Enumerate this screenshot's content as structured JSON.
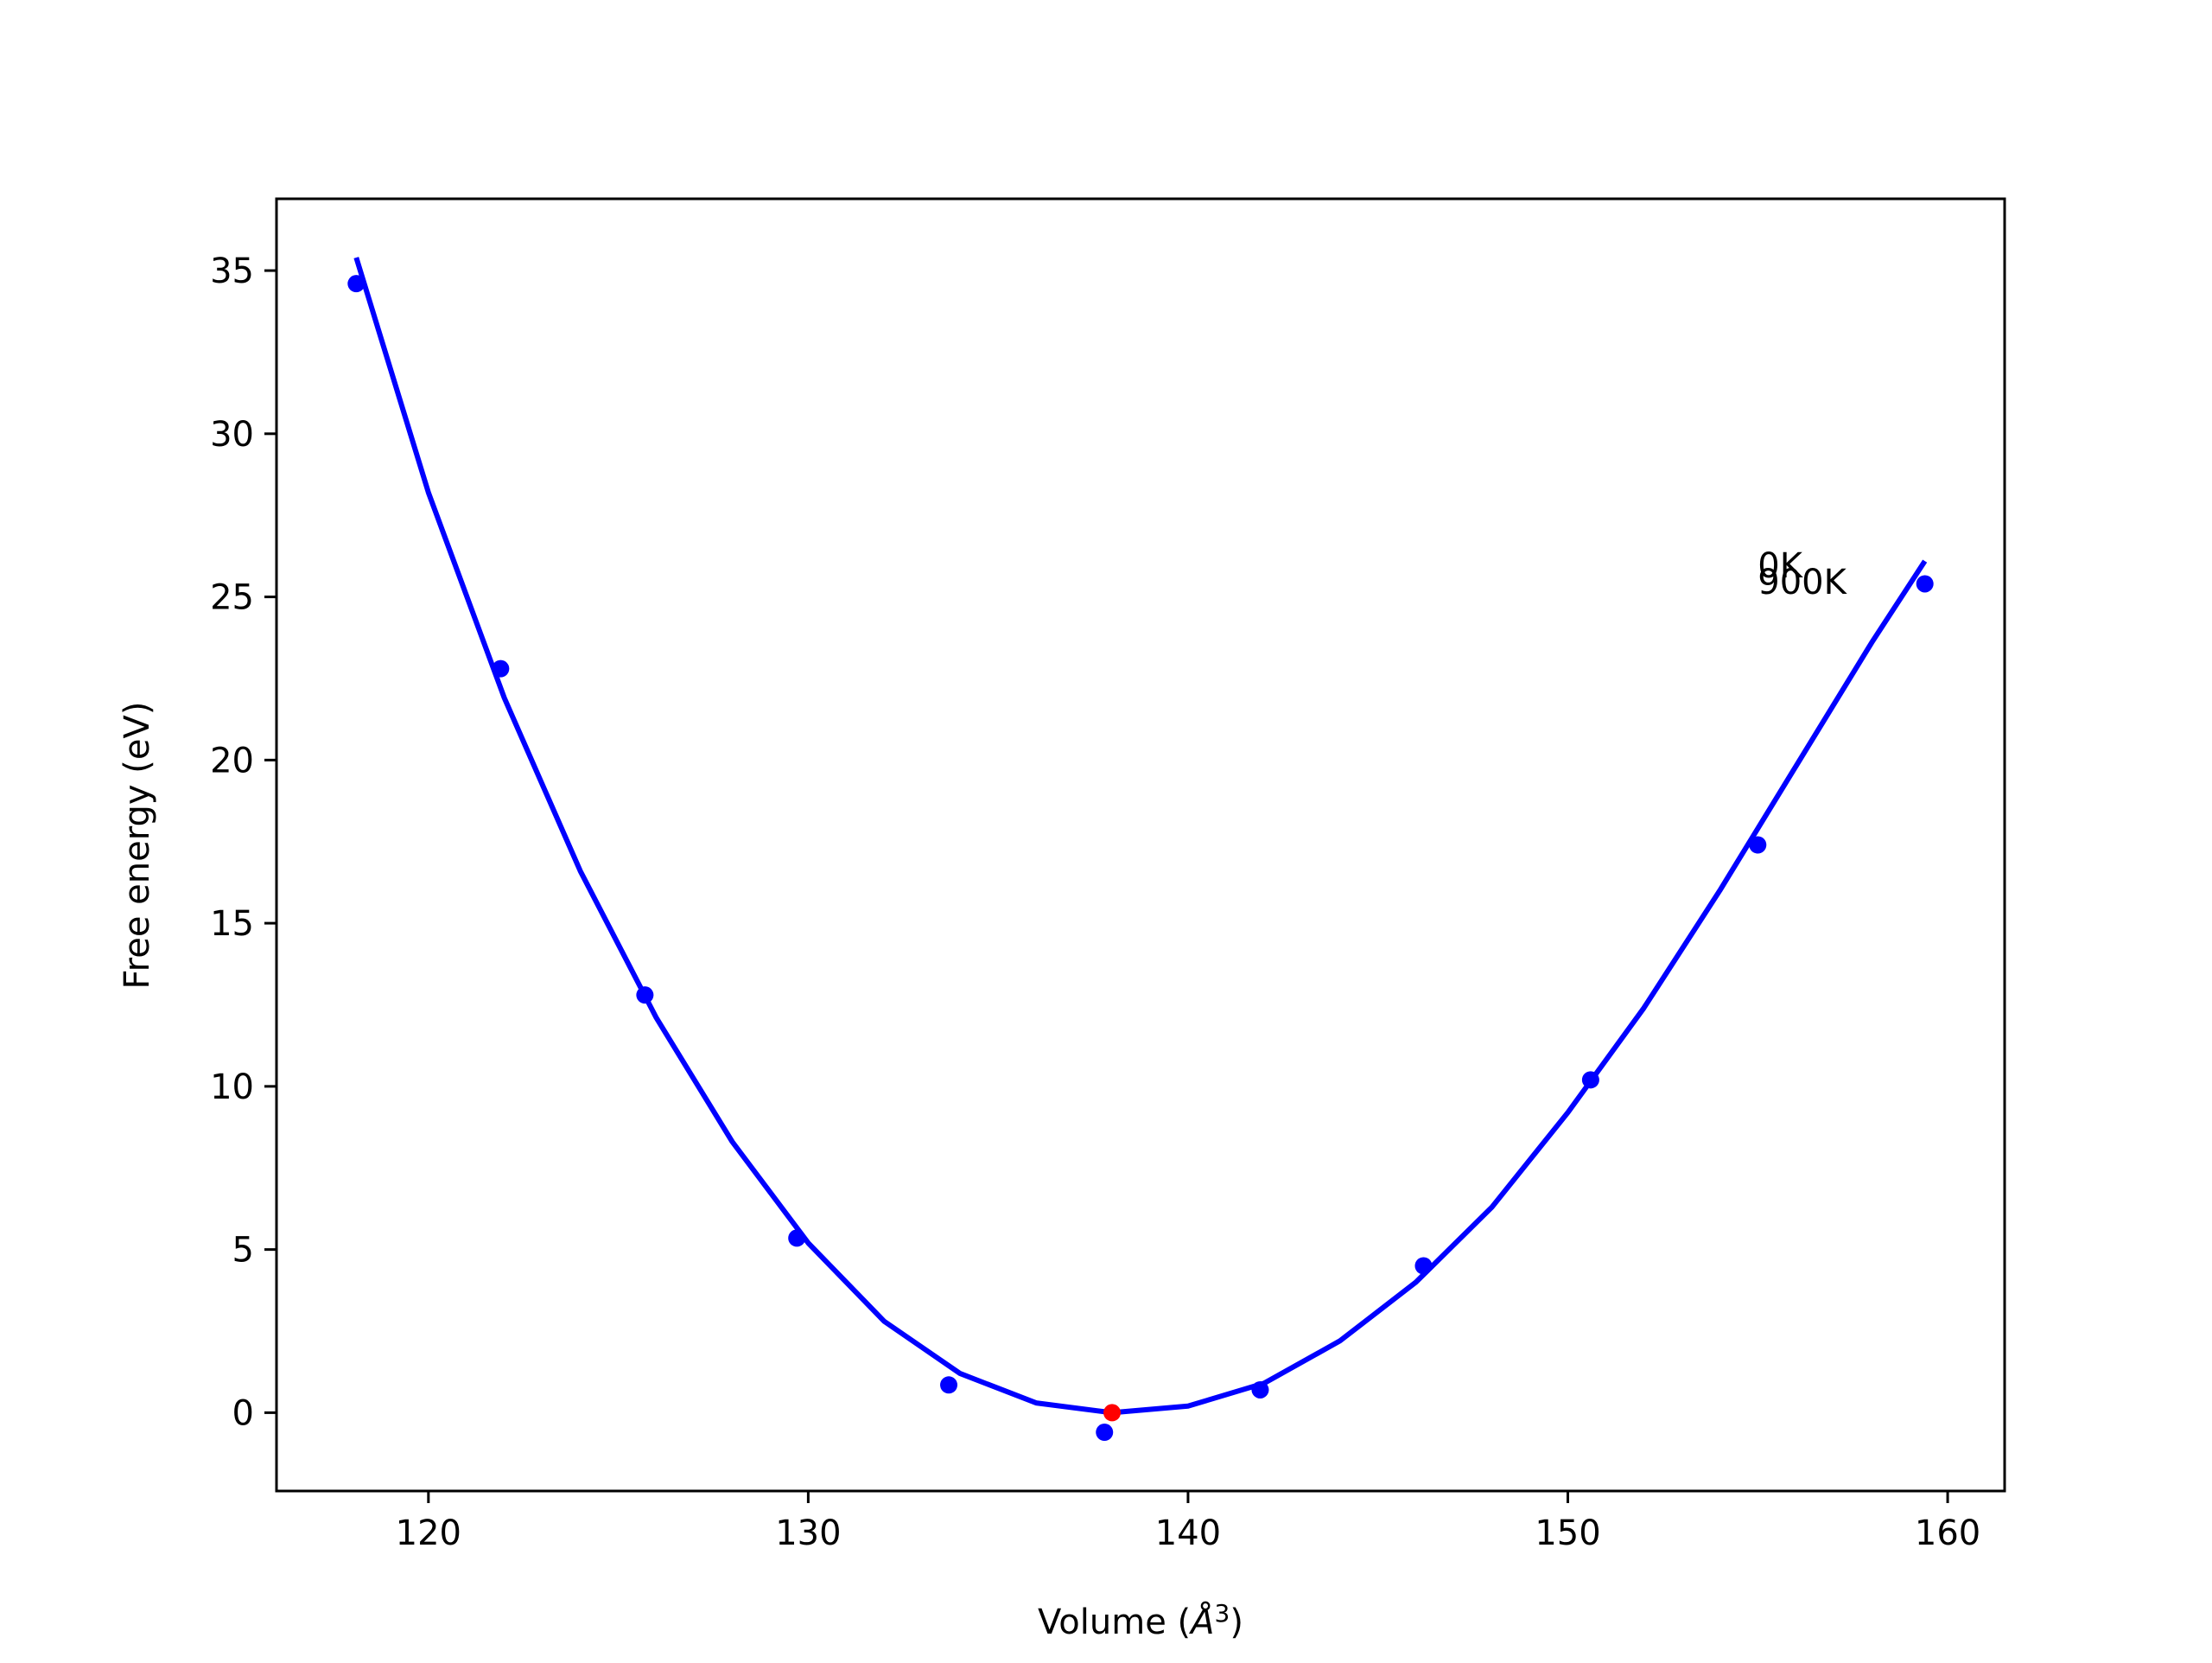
{
  "chart_data": {
    "type": "scatter",
    "xlabel": "Volume (Å³)",
    "xlabel_main": "Volume (",
    "xlabel_unit": "Å",
    "xlabel_sup": "3",
    "xlabel_close": ")",
    "ylabel": "Free energy (eV)",
    "xlim": [
      116,
      161.5
    ],
    "ylim": [
      -2.4,
      37.2
    ],
    "x_ticks": [
      120,
      130,
      140,
      150,
      160
    ],
    "y_ticks": [
      0,
      5,
      10,
      15,
      20,
      25,
      30,
      35
    ],
    "grid": false,
    "series": [
      {
        "kind": "scatter",
        "color": "#0000ff",
        "x": [
          118.1,
          121.9,
          125.7,
          129.7,
          133.7,
          137.8,
          141.9,
          146.2,
          150.6,
          155.0,
          159.4
        ],
        "y": [
          34.6,
          22.8,
          12.8,
          5.35,
          0.85,
          -0.6,
          0.7,
          4.5,
          10.2,
          17.4,
          25.4
        ]
      },
      {
        "kind": "line",
        "color": "#0000ff",
        "x": [
          118.1,
          120.0,
          122.0,
          124.0,
          126.0,
          128.0,
          130.0,
          132.0,
          134.0,
          136.0,
          138.0,
          140.0,
          142.0,
          144.0,
          146.0,
          148.0,
          150.0,
          152.0,
          154.0,
          156.0,
          158.0,
          159.4
        ],
        "y": [
          35.4,
          28.2,
          21.9,
          16.6,
          12.1,
          8.3,
          5.2,
          2.8,
          1.2,
          0.3,
          0.0,
          0.2,
          0.9,
          2.2,
          4.0,
          6.3,
          9.2,
          12.4,
          16.0,
          19.8,
          23.6,
          26.1
        ]
      },
      {
        "kind": "scatter",
        "color": "#ff0000",
        "x": [
          138.0
        ],
        "y": [
          0.0
        ]
      }
    ],
    "annotations": [
      {
        "text": "0K",
        "x": 155.0,
        "y": 25.6
      },
      {
        "text": "900K",
        "x": 155.0,
        "y": 25.1
      }
    ]
  }
}
